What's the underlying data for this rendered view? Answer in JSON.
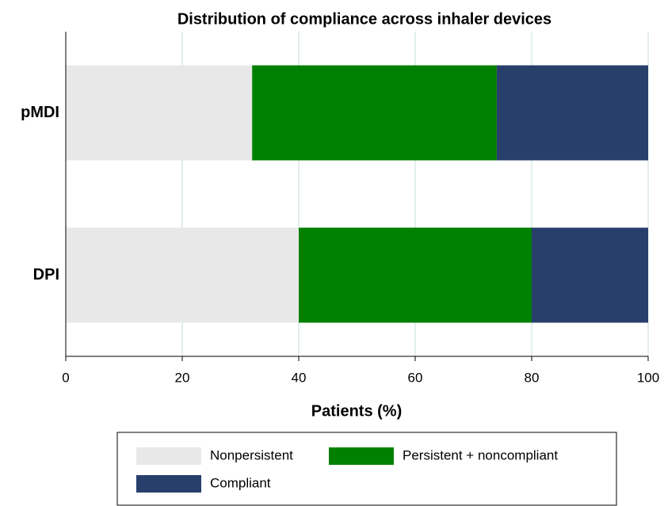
{
  "chart_data": {
    "type": "bar",
    "orientation": "horizontal",
    "stacked": true,
    "title": "Distribution of compliance across inhaler devices",
    "x_label": "Patients (%)",
    "categories": [
      "pMDI",
      "DPI"
    ],
    "series": [
      {
        "name": "Nonpersistent",
        "color": "#e8e8e8",
        "values": [
          32,
          40
        ]
      },
      {
        "name": "Persistent + noncompliant",
        "color": "#008000",
        "values": [
          42,
          40
        ]
      },
      {
        "name": "Compliant",
        "color": "#283f6c",
        "values": [
          26,
          20
        ]
      }
    ],
    "xlim": [
      0,
      100
    ],
    "xticks": [
      0,
      20,
      40,
      60,
      80,
      100
    ],
    "grid": true,
    "legend": "bottom"
  }
}
